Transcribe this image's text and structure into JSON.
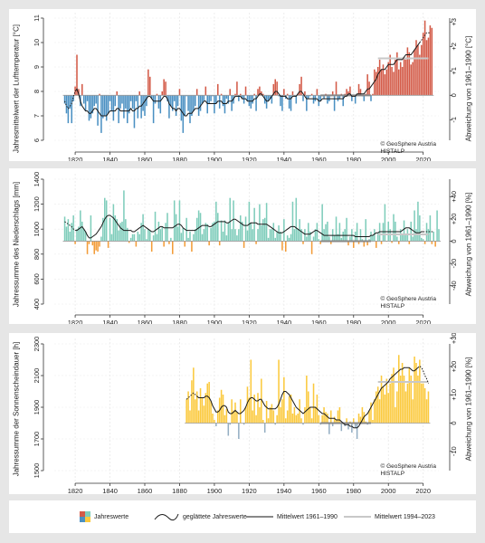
{
  "copyright": [
    "© GeoSphere Austria",
    "HISTALP"
  ],
  "legend": {
    "annual": "Jahreswerte",
    "smoothed": "geglättete Jahreswerte",
    "mean_ref": "Mittelwert 1961–1990",
    "mean_recent": "Mittelwert 1994–2023"
  },
  "colors": {
    "temp_pos": "#d35a47",
    "temp_neg": "#4a90c2",
    "prec_pos": "#7fcdbb",
    "prec_neg": "#f39c38",
    "sun_pos": "#fbc93d",
    "sun_neg": "#94aec3",
    "smooth": "#1a1a1a",
    "mean_ref": "#888888",
    "mean_recent": "#c8c8c8"
  },
  "chart_data": [
    {
      "type": "bar",
      "ylabel": "Jahresmittelwert der Lufttemperatur [°C]",
      "y2label": "Abweichung von 1961–1990 [°C]",
      "xlim": [
        1808,
        2029
      ],
      "ylim": [
        6,
        11
      ],
      "y2lim": [
        -1.84,
        3.16
      ],
      "yticks": [
        "6",
        "7",
        "8",
        "9",
        "10",
        "11"
      ],
      "y2ticks": [
        "-1",
        "0",
        "+1",
        "+2",
        "+3"
      ],
      "xticks": [
        "1820",
        "1840",
        "1860",
        "1880",
        "1900",
        "1920",
        "1940",
        "1960",
        "1980",
        "2000",
        "2020"
      ],
      "baseline": 7.84,
      "start_year": 1814,
      "mean_ref": {
        "years": [
          1961,
          1990
        ],
        "value": 7.84
      },
      "mean_recent": {
        "years": [
          1994,
          2023
        ],
        "value": 9.35
      },
      "values": [
        7.5,
        7.1,
        6.7,
        7.3,
        6.7,
        7.6,
        8.2,
        9.5,
        8.1,
        7.4,
        8.3,
        7.5,
        7.2,
        7.6,
        6.8,
        6.9,
        7.1,
        7.4,
        7.5,
        6.6,
        7.9,
        6.3,
        6.9,
        7.0,
        6.8,
        7.1,
        7.6,
        7.2,
        6.8,
        7.4,
        8.0,
        6.7,
        7.3,
        7.5,
        6.9,
        7.3,
        6.7,
        7.1,
        7.6,
        7.3,
        6.5,
        7.6,
        6.9,
        8.0,
        6.9,
        7.2,
        7.0,
        7.4,
        8.9,
        8.6,
        7.7,
        6.7,
        7.5,
        7.9,
        7.3,
        7.1,
        8.0,
        8.5,
        8.4,
        7.6,
        6.9,
        7.4,
        7.2,
        7.6,
        7.0,
        7.4,
        8.1,
        6.8,
        6.3,
        7.0,
        7.8,
        7.2,
        6.7,
        7.0,
        7.2,
        7.4,
        8.1,
        7.0,
        7.2,
        7.5,
        7.6,
        8.2,
        7.1,
        7.5,
        7.6,
        7.8,
        7.1,
        7.5,
        8.3,
        7.3,
        7.9,
        7.4,
        7.1,
        7.7,
        7.5,
        8.1,
        7.2,
        7.5,
        7.9,
        8.4,
        7.6,
        7.9,
        7.7,
        7.5,
        8.2,
        7.6,
        7.4,
        7.3,
        7.5,
        7.9,
        7.2,
        8.1,
        8.2,
        8.0,
        7.9,
        7.5,
        7.3,
        7.6,
        7.7,
        7.5,
        8.3,
        8.5,
        8.4,
        7.8,
        7.4,
        7.2,
        8.1,
        7.7,
        7.9,
        7.3,
        7.2,
        8.0,
        7.8,
        7.5,
        7.9,
        8.3,
        8.6,
        7.6,
        8.0,
        7.2,
        7.7,
        7.8,
        7.9,
        7.5,
        7.6,
        8.1,
        7.4,
        7.6,
        7.8,
        7.7,
        7.9,
        7.5,
        7.6,
        7.8,
        8.0,
        7.2,
        8.4,
        7.6,
        7.7,
        7.9,
        7.4,
        7.9,
        8.1,
        8.0,
        8.2,
        7.6,
        7.8,
        7.5,
        7.9,
        8.3,
        8.1,
        7.8,
        7.6,
        7.9,
        8.7,
        8.4,
        7.6,
        7.9,
        8.9,
        8.8,
        9.0,
        9.3,
        8.9,
        9.1,
        8.7,
        8.9,
        9.2,
        9.5,
        9.0,
        8.8,
        9.3,
        9.6,
        8.9,
        9.2,
        9.0,
        9.4,
        9.3,
        9.8,
        9.6,
        9.1,
        9.2,
        9.7,
        10.1,
        9.9,
        9.5,
        9.9,
        10.4,
        10.9,
        10.1,
        10.2,
        10.7,
        10.6
      ],
      "smoothed": [
        7.6,
        7.4,
        7.3,
        7.4,
        7.5,
        7.8,
        8.0,
        8.1,
        7.9,
        7.6,
        7.4,
        7.3,
        7.2,
        7.2,
        7.1,
        7.1,
        7.2,
        7.3,
        7.3,
        7.2,
        7.1,
        7.0,
        7.0,
        7.0,
        7.0,
        7.1,
        7.2,
        7.2,
        7.2,
        7.2,
        7.3,
        7.3,
        7.2,
        7.2,
        7.2,
        7.2,
        7.2,
        7.2,
        7.3,
        7.2,
        7.2,
        7.3,
        7.3,
        7.4,
        7.4,
        7.5,
        7.6,
        7.7,
        7.8,
        7.8,
        7.7,
        7.6,
        7.6,
        7.6,
        7.6,
        7.6,
        7.7,
        7.8,
        7.8,
        7.7,
        7.5,
        7.4,
        7.3,
        7.3,
        7.2,
        7.3,
        7.3,
        7.2,
        7.1,
        7.0,
        7.0,
        7.1,
        7.1,
        7.1,
        7.2,
        7.3,
        7.3,
        7.3,
        7.4,
        7.5,
        7.6,
        7.6,
        7.5,
        7.5,
        7.5,
        7.5,
        7.5,
        7.5,
        7.6,
        7.6,
        7.6,
        7.5,
        7.5,
        7.5,
        7.6,
        7.6,
        7.6,
        7.7,
        7.8,
        7.8,
        7.8,
        7.8,
        7.7,
        7.7,
        7.7,
        7.6,
        7.6,
        7.6,
        7.6,
        7.7,
        7.7,
        7.8,
        7.9,
        7.9,
        7.8,
        7.7,
        7.6,
        7.6,
        7.7,
        7.8,
        7.9,
        8.0,
        8.0,
        7.9,
        7.8,
        7.8,
        7.8,
        7.8,
        7.7,
        7.7,
        7.7,
        7.8,
        7.8,
        7.8,
        7.9,
        8.0,
        8.0,
        7.9,
        7.8,
        7.7,
        7.7,
        7.7,
        7.7,
        7.7,
        7.7,
        7.7,
        7.6,
        7.6,
        7.7,
        7.7,
        7.7,
        7.7,
        7.7,
        7.7,
        7.7,
        7.7,
        7.7,
        7.7,
        7.7,
        7.7,
        7.7,
        7.8,
        7.8,
        7.9,
        7.9,
        7.8,
        7.8,
        7.8,
        7.9,
        7.9,
        7.9,
        7.9,
        7.9,
        8.0,
        8.1,
        8.1,
        8.2,
        8.3,
        8.4,
        8.5,
        8.7,
        8.8,
        8.9,
        8.9,
        8.9,
        9.0,
        9.1,
        9.1,
        9.1,
        9.1,
        9.2,
        9.3,
        9.3,
        9.3,
        9.3,
        9.4,
        9.5,
        9.5,
        9.5,
        9.5,
        9.6,
        9.7,
        9.8,
        9.9,
        10.0,
        10.1,
        10.2,
        10.3,
        10.4,
        10.4,
        10.4
      ]
    },
    {
      "type": "bar",
      "ylabel": "Jahressumme des Niederschlags [mm]",
      "y2label": "Abweichung von 1961–1990 [%]",
      "xlim": [
        1808,
        2029
      ],
      "ylim": [
        400,
        1400
      ],
      "y2lim": [
        -56.5,
        55.7
      ],
      "yticks": [
        "400",
        "600",
        "800",
        "1000",
        "1200",
        "1400"
      ],
      "y2ticks": [
        "-40",
        "-20",
        "0",
        "+20",
        "+40"
      ],
      "xticks": [
        "1820",
        "1840",
        "1860",
        "1880",
        "1900",
        "1920",
        "1940",
        "1960",
        "1980",
        "2000",
        "2020"
      ],
      "baseline": 904,
      "start_year": 1814,
      "mean_ref": {
        "years": [
          1961,
          1990
        ],
        "value": 904
      },
      "mean_recent": {
        "years": [
          1994,
          2023
        ],
        "value": 958
      },
      "values": [
        1100,
        1020,
        1080,
        980,
        1050,
        1110,
        880,
        1000,
        1020,
        1150,
        1060,
        1000,
        980,
        800,
        880,
        1110,
        870,
        800,
        830,
        820,
        860,
        940,
        1090,
        1250,
        1230,
        850,
        1090,
        960,
        1200,
        1110,
        1080,
        990,
        1050,
        1060,
        1310,
        1080,
        1010,
        890,
        930,
        960,
        960,
        860,
        980,
        960,
        1050,
        1120,
        1000,
        920,
        1000,
        990,
        820,
        950,
        1140,
        960,
        1060,
        1000,
        1020,
        860,
        1050,
        1130,
        880,
        930,
        800,
        1230,
        1120,
        1020,
        1230,
        970,
        1010,
        860,
        1090,
        930,
        980,
        820,
        960,
        1000,
        1090,
        1150,
        1130,
        960,
        1000,
        1050,
        1040,
        870,
        1010,
        1050,
        1060,
        1220,
        1130,
        870,
        1070,
        980,
        1070,
        950,
        1050,
        1250,
        1000,
        1230,
        1000,
        950,
        1000,
        1110,
        1060,
        850,
        1100,
        990,
        1220,
        1050,
        1000,
        1170,
        880,
        1000,
        1200,
        1030,
        1080,
        1090,
        1210,
        930,
        1000,
        1000,
        1050,
        930,
        980,
        1030,
        980,
        830,
        1080,
        820,
        950,
        930,
        960,
        1220,
        1000,
        1250,
        1000,
        1080,
        1000,
        880,
        1000,
        940,
        1050,
        980,
        800,
        940,
        1000,
        1050,
        920,
        880,
        1200,
        1000,
        1040,
        1060,
        940,
        880,
        1000,
        950,
        1100,
        960,
        1050,
        930,
        980,
        1000,
        1090,
        870,
        940,
        1000,
        850,
        980,
        1050,
        880,
        1000,
        920,
        860,
        1080,
        870,
        920,
        980,
        950,
        1000,
        850,
        970,
        1050,
        880,
        1050,
        1200,
        900,
        1060,
        1000,
        890,
        1120,
        1060,
        940,
        880,
        1000,
        960,
        1070,
        960,
        1000,
        880,
        1060,
        940,
        1150,
        1000,
        1220,
        1110,
        930,
        920,
        880,
        1050,
        1000,
        1110,
        880,
        980,
        860,
        1150,
        1000
      ],
      "smoothed": [
        1060,
        1050,
        1040,
        1030,
        1020,
        1000,
        990,
        990,
        1000,
        1010,
        1020,
        1000,
        980,
        950,
        930,
        930,
        940,
        950,
        960,
        980,
        1000,
        1020,
        1050,
        1080,
        1100,
        1110,
        1110,
        1100,
        1090,
        1070,
        1050,
        1030,
        1010,
        1000,
        990,
        990,
        990,
        990,
        990,
        980,
        980,
        990,
        1000,
        1010,
        1020,
        1030,
        1020,
        1010,
        1000,
        990,
        980,
        980,
        990,
        1000,
        1010,
        1020,
        1020,
        1010,
        1010,
        1010,
        1010,
        1010,
        1010,
        1020,
        1030,
        1040,
        1040,
        1030,
        1010,
        1000,
        990,
        990,
        990,
        990,
        990,
        990,
        1000,
        1010,
        1020,
        1030,
        1030,
        1030,
        1030,
        1020,
        1020,
        1030,
        1040,
        1050,
        1060,
        1060,
        1060,
        1060,
        1060,
        1050,
        1050,
        1060,
        1070,
        1080,
        1080,
        1070,
        1060,
        1050,
        1040,
        1030,
        1030,
        1030,
        1040,
        1050,
        1050,
        1050,
        1050,
        1040,
        1040,
        1040,
        1040,
        1040,
        1040,
        1030,
        1020,
        1010,
        1000,
        990,
        980,
        970,
        970,
        970,
        980,
        990,
        1000,
        1010,
        1020,
        1020,
        1020,
        1010,
        1000,
        990,
        980,
        970,
        960,
        960,
        960,
        960,
        970,
        980,
        990,
        990,
        980,
        970,
        960,
        950,
        950,
        950,
        950,
        950,
        950,
        950,
        950,
        950,
        950,
        950,
        950,
        950,
        950,
        950,
        950,
        950,
        950,
        940,
        940,
        940,
        940,
        940,
        940,
        940,
        940,
        940,
        950,
        950,
        960,
        970,
        970,
        980,
        980,
        980,
        980,
        980,
        980,
        980,
        980,
        980,
        980,
        980,
        980,
        980,
        990,
        1000,
        1010,
        1010,
        1010,
        1000,
        990,
        980,
        970,
        970,
        970,
        980,
        980,
        980,
        980,
        980,
        980,
        980,
        980
      ]
    },
    {
      "type": "bar",
      "ylabel": "Jahressumme der Sonnenscheindauer [h]",
      "y2label": "Abweichung von 1961–1990 [%]",
      "xlim": [
        1808,
        2029
      ],
      "ylim": [
        1500,
        2300
      ],
      "y2lim": [
        -16.8,
        28.0
      ],
      "yticks": [
        "1500",
        "1700",
        "1900",
        "2100",
        "2300"
      ],
      "y2ticks": [
        "-10",
        "0",
        "+10",
        "+20",
        "+30"
      ],
      "xticks": [
        "1820",
        "1840",
        "1860",
        "1880",
        "1900",
        "1920",
        "1940",
        "1960",
        "1980",
        "2000",
        "2020"
      ],
      "baseline": 1800,
      "start_year": 1884,
      "mean_ref": {
        "years": [
          1961,
          1990
        ],
        "value": 1800
      },
      "mean_recent": {
        "years": [
          1994,
          2023
        ],
        "value": 2060
      },
      "values": [
        1950,
        2000,
        1880,
        2070,
        2150,
        1950,
        2000,
        1880,
        2020,
        1960,
        1910,
        1990,
        2050,
        2060,
        1940,
        1860,
        1820,
        1780,
        1880,
        1960,
        2010,
        1980,
        1850,
        1890,
        1720,
        1790,
        1950,
        1880,
        1930,
        1870,
        1700,
        1950,
        1800,
        1790,
        1900,
        2030,
        1960,
        2200,
        1880,
        1980,
        1850,
        1990,
        1900,
        2080,
        1820,
        1740,
        1940,
        1830,
        1900,
        1920,
        1880,
        1790,
        1850,
        2200,
        1900,
        1950,
        2090,
        1830,
        1880,
        1970,
        1980,
        1860,
        1900,
        1850,
        1860,
        1950,
        1830,
        1790,
        1900,
        2100,
        2000,
        1900,
        1830,
        2050,
        1900,
        1980,
        1850,
        1790,
        1850,
        1900,
        1870,
        1860,
        1730,
        1880,
        1780,
        1840,
        1820,
        1880,
        1900,
        1750,
        1800,
        1780,
        1830,
        1760,
        1810,
        1740,
        1830,
        1770,
        1700,
        1860,
        1840,
        1900,
        1870,
        1810,
        1790,
        1880,
        1930,
        1820,
        1950,
        2000,
        2030,
        1950,
        2100,
        2030,
        1980,
        2080,
        1990,
        2050,
        2110,
        2150,
        1900,
        2000,
        2230,
        2100,
        2180,
        2100,
        2000,
        2050,
        2150,
        2100,
        1950,
        2220,
        2180,
        2100,
        2200,
        2050,
        2050,
        2020,
        1950,
        2000
      ],
      "smoothed": [
        1950,
        1960,
        1970,
        1980,
        1990,
        1980,
        1970,
        1960,
        1960,
        1960,
        1960,
        1970,
        1970,
        1960,
        1940,
        1910,
        1890,
        1870,
        1870,
        1880,
        1900,
        1910,
        1910,
        1900,
        1870,
        1860,
        1860,
        1870,
        1880,
        1870,
        1860,
        1860,
        1870,
        1880,
        1900,
        1930,
        1950,
        1960,
        1960,
        1950,
        1940,
        1940,
        1950,
        1950,
        1930,
        1910,
        1900,
        1890,
        1890,
        1890,
        1890,
        1890,
        1900,
        1920,
        1950,
        1980,
        2000,
        2000,
        1990,
        1980,
        1960,
        1940,
        1920,
        1900,
        1890,
        1880,
        1870,
        1860,
        1870,
        1880,
        1890,
        1900,
        1900,
        1900,
        1900,
        1890,
        1880,
        1870,
        1860,
        1860,
        1850,
        1840,
        1830,
        1830,
        1830,
        1830,
        1820,
        1820,
        1820,
        1810,
        1800,
        1790,
        1790,
        1790,
        1780,
        1780,
        1770,
        1770,
        1770,
        1780,
        1800,
        1820,
        1840,
        1850,
        1860,
        1880,
        1900,
        1920,
        1940,
        1960,
        1980,
        2000,
        2020,
        2030,
        2040,
        2050,
        2060,
        2080,
        2090,
        2100,
        2110,
        2120,
        2130,
        2140,
        2140,
        2150,
        2150,
        2150,
        2150,
        2140,
        2130,
        2130,
        2140,
        2150,
        2160,
        2150,
        2130,
        2100,
        2080,
        2050
      ]
    }
  ]
}
